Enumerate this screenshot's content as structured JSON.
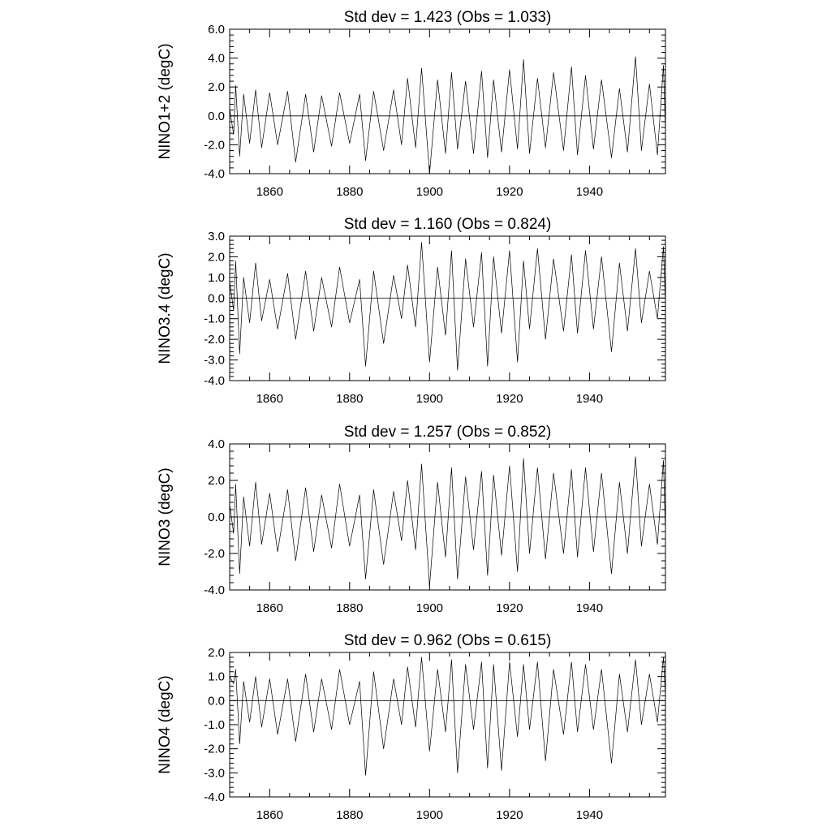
{
  "chart_data": [
    {
      "type": "line",
      "title": "Std dev = 1.423 (Obs = 1.033)",
      "ylabel": "NINO1+2 (degC)",
      "xlabel": "",
      "xlim": [
        1850,
        1959
      ],
      "ylim": [
        -4.0,
        6.0
      ],
      "ytick_values": [
        -4.0,
        -2.0,
        0.0,
        2.0,
        4.0,
        6.0
      ],
      "ytick_labels": [
        "-4.0",
        "-2.0",
        "0.0",
        "2.0",
        "4.0",
        "6.0"
      ],
      "xtick_values": [
        1860,
        1880,
        1900,
        1920,
        1940
      ],
      "xtick_labels": [
        "1860",
        "1880",
        "1900",
        "1920",
        "1940"
      ],
      "grid": false,
      "series": [
        {
          "x": [
            1850.0,
            1851.0,
            1851.5,
            1852.5,
            1853.5,
            1855.0,
            1856.5,
            1858.0,
            1860.0,
            1862.0,
            1864.5,
            1866.5,
            1869.0,
            1871.0,
            1873.0,
            1875.5,
            1877.5,
            1880.0,
            1882.5,
            1884.0,
            1886.0,
            1888.5,
            1891.0,
            1893.0,
            1894.5,
            1896.5,
            1898.0,
            1900.0,
            1902.0,
            1904.0,
            1905.5,
            1907.0,
            1909.0,
            1911.0,
            1913.0,
            1914.5,
            1916.0,
            1918.0,
            1920.0,
            1922.0,
            1923.5,
            1925.0,
            1927.0,
            1929.0,
            1931.0,
            1933.5,
            1935.5,
            1937.0,
            1939.0,
            1941.0,
            1943.0,
            1945.5,
            1947.5,
            1949.5,
            1951.5,
            1953.0,
            1955.0,
            1957.0,
            1958.5,
            1959.0
          ],
          "y": [
            0.5,
            -1.3,
            2.1,
            -2.8,
            1.5,
            -1.9,
            1.8,
            -2.2,
            1.6,
            -2.0,
            1.7,
            -3.2,
            1.5,
            -2.5,
            1.4,
            -2.1,
            1.6,
            -1.9,
            1.5,
            -3.1,
            1.7,
            -2.4,
            1.8,
            -2.0,
            2.6,
            -2.2,
            3.3,
            -4.0,
            2.5,
            -2.6,
            3.0,
            -2.3,
            2.4,
            -2.6,
            3.1,
            -2.9,
            2.5,
            -2.5,
            3.2,
            -2.3,
            3.9,
            -2.6,
            2.6,
            -2.2,
            3.0,
            -2.4,
            3.4,
            -2.7,
            2.8,
            -2.3,
            2.5,
            -2.9,
            1.9,
            -2.5,
            4.1,
            -2.4,
            2.2,
            -2.7,
            3.5,
            -1.0
          ]
        }
      ]
    },
    {
      "type": "line",
      "title": "Std dev = 1.160 (Obs = 0.824)",
      "ylabel": "NINO3.4 (degC)",
      "xlabel": "",
      "xlim": [
        1850,
        1959
      ],
      "ylim": [
        -4.0,
        3.0
      ],
      "ytick_values": [
        -4.0,
        -3.0,
        -2.0,
        -1.0,
        0.0,
        1.0,
        2.0,
        3.0
      ],
      "ytick_labels": [
        "-4.0",
        "-3.0",
        "-2.0",
        "-1.0",
        "0.0",
        "1.0",
        "2.0",
        "3.0"
      ],
      "xtick_values": [
        1860,
        1880,
        1900,
        1920,
        1940
      ],
      "xtick_labels": [
        "1860",
        "1880",
        "1900",
        "1920",
        "1940"
      ],
      "grid": false,
      "series": [
        {
          "x": [
            1850.0,
            1851.0,
            1851.5,
            1852.5,
            1853.5,
            1855.0,
            1856.5,
            1858.0,
            1860.0,
            1862.0,
            1864.5,
            1866.5,
            1869.0,
            1871.0,
            1873.0,
            1875.5,
            1877.5,
            1880.0,
            1882.5,
            1884.0,
            1886.0,
            1888.5,
            1891.0,
            1893.0,
            1894.5,
            1896.5,
            1898.0,
            1900.0,
            1902.0,
            1904.0,
            1905.5,
            1907.0,
            1909.0,
            1911.0,
            1913.0,
            1914.5,
            1916.0,
            1918.0,
            1920.0,
            1922.0,
            1923.5,
            1925.0,
            1927.0,
            1929.0,
            1931.0,
            1933.5,
            1935.5,
            1937.0,
            1939.0,
            1941.0,
            1943.0,
            1945.5,
            1947.5,
            1949.5,
            1951.5,
            1953.0,
            1955.0,
            1957.0,
            1958.5,
            1959.0
          ],
          "y": [
            0.8,
            -0.6,
            1.8,
            -2.7,
            1.0,
            -1.2,
            1.7,
            -1.1,
            0.9,
            -1.5,
            1.2,
            -2.0,
            1.3,
            -1.6,
            1.0,
            -1.4,
            1.5,
            -1.2,
            0.9,
            -3.3,
            1.3,
            -2.2,
            1.1,
            -1.0,
            1.6,
            -1.4,
            2.7,
            -3.1,
            1.5,
            -1.8,
            2.3,
            -3.5,
            1.9,
            -1.4,
            2.2,
            -3.3,
            2.0,
            -1.7,
            2.3,
            -3.1,
            1.8,
            -1.5,
            2.4,
            -2.0,
            1.9,
            -1.6,
            2.1,
            -1.7,
            2.3,
            -1.5,
            2.0,
            -2.6,
            1.7,
            -1.6,
            2.4,
            -1.2,
            1.3,
            -1.0,
            2.5,
            -0.3
          ]
        }
      ]
    },
    {
      "type": "line",
      "title": "Std dev = 1.257 (Obs = 0.852)",
      "ylabel": "NINO3 (degC)",
      "xlabel": "",
      "xlim": [
        1850,
        1959
      ],
      "ylim": [
        -4.0,
        4.0
      ],
      "ytick_values": [
        -4.0,
        -2.0,
        0.0,
        2.0,
        4.0
      ],
      "ytick_labels": [
        "-4.0",
        "-2.0",
        "0.0",
        "2.0",
        "4.0"
      ],
      "xtick_values": [
        1860,
        1880,
        1900,
        1920,
        1940
      ],
      "xtick_labels": [
        "1860",
        "1880",
        "1900",
        "1920",
        "1940"
      ],
      "grid": false,
      "series": [
        {
          "x": [
            1850.0,
            1851.0,
            1851.5,
            1852.5,
            1853.5,
            1855.0,
            1856.5,
            1858.0,
            1860.0,
            1862.0,
            1864.5,
            1866.5,
            1869.0,
            1871.0,
            1873.0,
            1875.5,
            1877.5,
            1880.0,
            1882.5,
            1884.0,
            1886.0,
            1888.5,
            1891.0,
            1893.0,
            1894.5,
            1896.5,
            1898.0,
            1900.0,
            1902.0,
            1904.0,
            1905.5,
            1907.0,
            1909.0,
            1911.0,
            1913.0,
            1914.5,
            1916.0,
            1918.0,
            1920.0,
            1922.0,
            1923.5,
            1925.0,
            1927.0,
            1929.0,
            1931.0,
            1933.5,
            1935.5,
            1937.0,
            1939.0,
            1941.0,
            1943.0,
            1945.5,
            1947.5,
            1949.5,
            1951.5,
            1953.0,
            1955.0,
            1957.0,
            1958.5,
            1959.0
          ],
          "y": [
            0.7,
            -0.9,
            1.8,
            -3.1,
            1.1,
            -1.6,
            1.9,
            -1.5,
            1.3,
            -1.9,
            1.5,
            -2.4,
            1.6,
            -1.9,
            1.2,
            -1.7,
            1.8,
            -1.6,
            1.2,
            -3.4,
            1.5,
            -2.6,
            1.4,
            -1.3,
            2.0,
            -1.8,
            2.9,
            -3.8,
            1.9,
            -2.2,
            2.7,
            -3.4,
            2.2,
            -1.8,
            2.5,
            -3.2,
            2.3,
            -2.1,
            2.8,
            -3.0,
            3.2,
            -2.0,
            2.7,
            -2.3,
            2.4,
            -2.0,
            2.6,
            -2.2,
            2.7,
            -1.9,
            2.4,
            -3.1,
            1.9,
            -2.0,
            3.3,
            -1.6,
            1.8,
            -1.5,
            3.1,
            -0.8
          ]
        }
      ]
    },
    {
      "type": "line",
      "title": "Std dev = 0.962 (Obs = 0.615)",
      "ylabel": "NINO4 (degC)",
      "xlabel": "",
      "xlim": [
        1850,
        1959
      ],
      "ylim": [
        -4.0,
        2.0
      ],
      "ytick_values": [
        -4.0,
        -3.0,
        -2.0,
        -1.0,
        0.0,
        1.0,
        2.0
      ],
      "ytick_labels": [
        "-4.0",
        "-3.0",
        "-2.0",
        "-1.0",
        "0.0",
        "1.0",
        "2.0"
      ],
      "xtick_values": [
        1860,
        1880,
        1900,
        1920,
        1940
      ],
      "xtick_labels": [
        "1860",
        "1880",
        "1900",
        "1920",
        "1940"
      ],
      "grid": false,
      "series": [
        {
          "x": [
            1850.0,
            1851.0,
            1851.5,
            1852.5,
            1853.5,
            1855.0,
            1856.5,
            1858.0,
            1860.0,
            1862.0,
            1864.5,
            1866.5,
            1869.0,
            1871.0,
            1873.0,
            1875.5,
            1877.5,
            1880.0,
            1882.5,
            1884.0,
            1886.0,
            1888.5,
            1891.0,
            1893.0,
            1894.5,
            1896.5,
            1898.0,
            1900.0,
            1902.0,
            1904.0,
            1905.5,
            1907.0,
            1909.0,
            1911.0,
            1913.0,
            1914.5,
            1916.0,
            1918.0,
            1920.0,
            1922.0,
            1923.5,
            1925.0,
            1927.0,
            1929.0,
            1931.0,
            1933.5,
            1935.5,
            1937.0,
            1939.0,
            1941.0,
            1943.0,
            1945.5,
            1947.5,
            1949.5,
            1951.5,
            1953.0,
            1955.0,
            1957.0,
            1958.5,
            1959.0
          ],
          "y": [
            1.0,
            0.7,
            1.3,
            -1.8,
            0.8,
            -0.9,
            1.0,
            -1.1,
            0.9,
            -1.4,
            0.9,
            -1.7,
            1.1,
            -1.3,
            0.9,
            -1.2,
            1.3,
            -1.0,
            0.8,
            -3.1,
            1.2,
            -2.0,
            0.9,
            -1.0,
            1.4,
            -1.1,
            1.8,
            -2.1,
            1.3,
            -1.3,
            1.7,
            -3.0,
            1.5,
            -1.2,
            1.6,
            -2.8,
            1.5,
            -2.9,
            1.6,
            -1.5,
            1.5,
            -1.2,
            1.6,
            -2.5,
            1.3,
            -1.4,
            1.6,
            -1.3,
            1.5,
            -1.2,
            1.3,
            -2.6,
            1.1,
            -1.3,
            1.7,
            -1.0,
            1.1,
            -0.9,
            1.8,
            0.2
          ]
        }
      ]
    }
  ]
}
